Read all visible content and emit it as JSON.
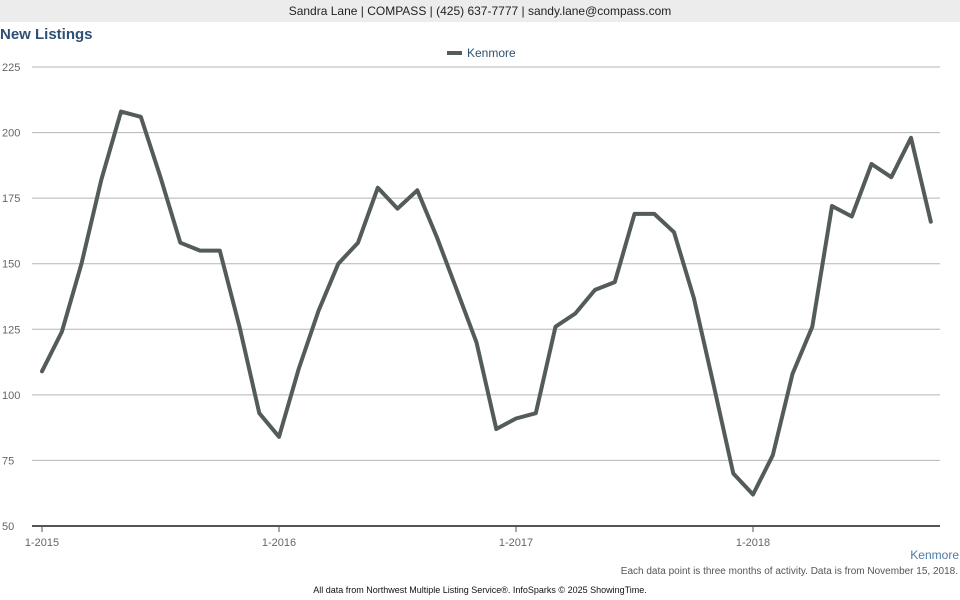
{
  "header": {
    "contact_line": "Sandra Lane | COMPASS | (425) 637-7777 | sandy.lane@compass.com"
  },
  "chart_data": {
    "type": "line",
    "title": "New Listings",
    "xlabel": "",
    "ylabel": "",
    "ylim": [
      50,
      225
    ],
    "yticks": [
      50,
      75,
      100,
      125,
      150,
      175,
      200,
      225
    ],
    "xticks": [
      "1-2015",
      "1-2016",
      "1-2017",
      "1-2018"
    ],
    "x": [
      "1-2015",
      "2-2015",
      "3-2015",
      "4-2015",
      "5-2015",
      "6-2015",
      "7-2015",
      "8-2015",
      "9-2015",
      "10-2015",
      "11-2015",
      "12-2015",
      "1-2016",
      "2-2016",
      "3-2016",
      "4-2016",
      "5-2016",
      "6-2016",
      "7-2016",
      "8-2016",
      "9-2016",
      "10-2016",
      "11-2016",
      "12-2016",
      "1-2017",
      "2-2017",
      "3-2017",
      "4-2017",
      "5-2017",
      "6-2017",
      "7-2017",
      "8-2017",
      "9-2017",
      "10-2017",
      "11-2017",
      "12-2017",
      "1-2018",
      "2-2018",
      "3-2018",
      "4-2018",
      "5-2018",
      "6-2018",
      "7-2018",
      "8-2018",
      "9-2018",
      "10-2018"
    ],
    "series": [
      {
        "name": "Kenmore",
        "color": "#545c5b",
        "values": [
          109,
          124,
          150,
          182,
          208,
          206,
          183,
          158,
          155,
          155,
          126,
          93,
          84,
          110,
          132,
          150,
          158,
          179,
          171,
          178,
          160,
          140,
          120,
          87,
          91,
          93,
          126,
          131,
          140,
          143,
          169,
          169,
          162,
          137,
          104,
          70,
          62,
          77,
          108,
          126,
          172,
          168,
          188,
          183,
          198,
          166
        ]
      }
    ],
    "legend_position": "top-center",
    "grid": true
  },
  "footer": {
    "series_label": "Kenmore",
    "note": "Each data point is three months of activity. Data is from November 15, 2018.",
    "source": "All data from Northwest Multiple Listing Service®. InfoSparks © 2025 ShowingTime."
  }
}
